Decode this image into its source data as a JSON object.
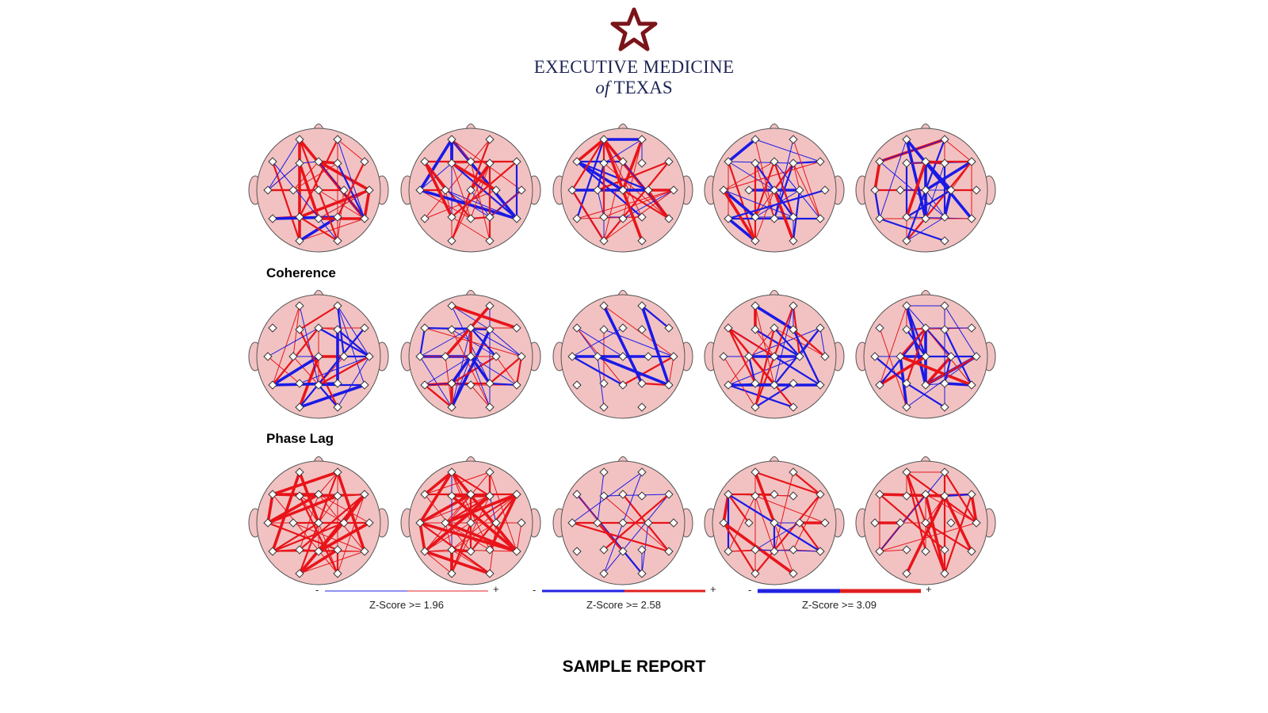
{
  "logo": {
    "line1": "EXECUTIVE MEDICINE",
    "line2_of": "of",
    "line2_rest": "TEXAS",
    "star_color": "#7a1418",
    "text_color": "#1e2454"
  },
  "section_labels": [
    "Coherence",
    "Phase Lag"
  ],
  "legend": [
    {
      "label": "Z-Score >= 1.96",
      "minus": "-",
      "plus": "+",
      "negative_color": "#2323e0",
      "positive_color": "#e02020"
    },
    {
      "label": "Z-Score >= 2.58",
      "minus": "-",
      "plus": "+",
      "negative_color": "#2323e0",
      "positive_color": "#e02020"
    },
    {
      "label": "Z-Score >= 3.09",
      "minus": "-",
      "plus": "+",
      "negative_color": "#2323e0",
      "positive_color": "#e02020"
    }
  ],
  "footer": "SAMPLE REPORT",
  "colors": {
    "head_fill": "#f2c2c2",
    "head_stroke": "#555555",
    "positive": "#e8141a",
    "negative": "#1a1ae6"
  }
}
